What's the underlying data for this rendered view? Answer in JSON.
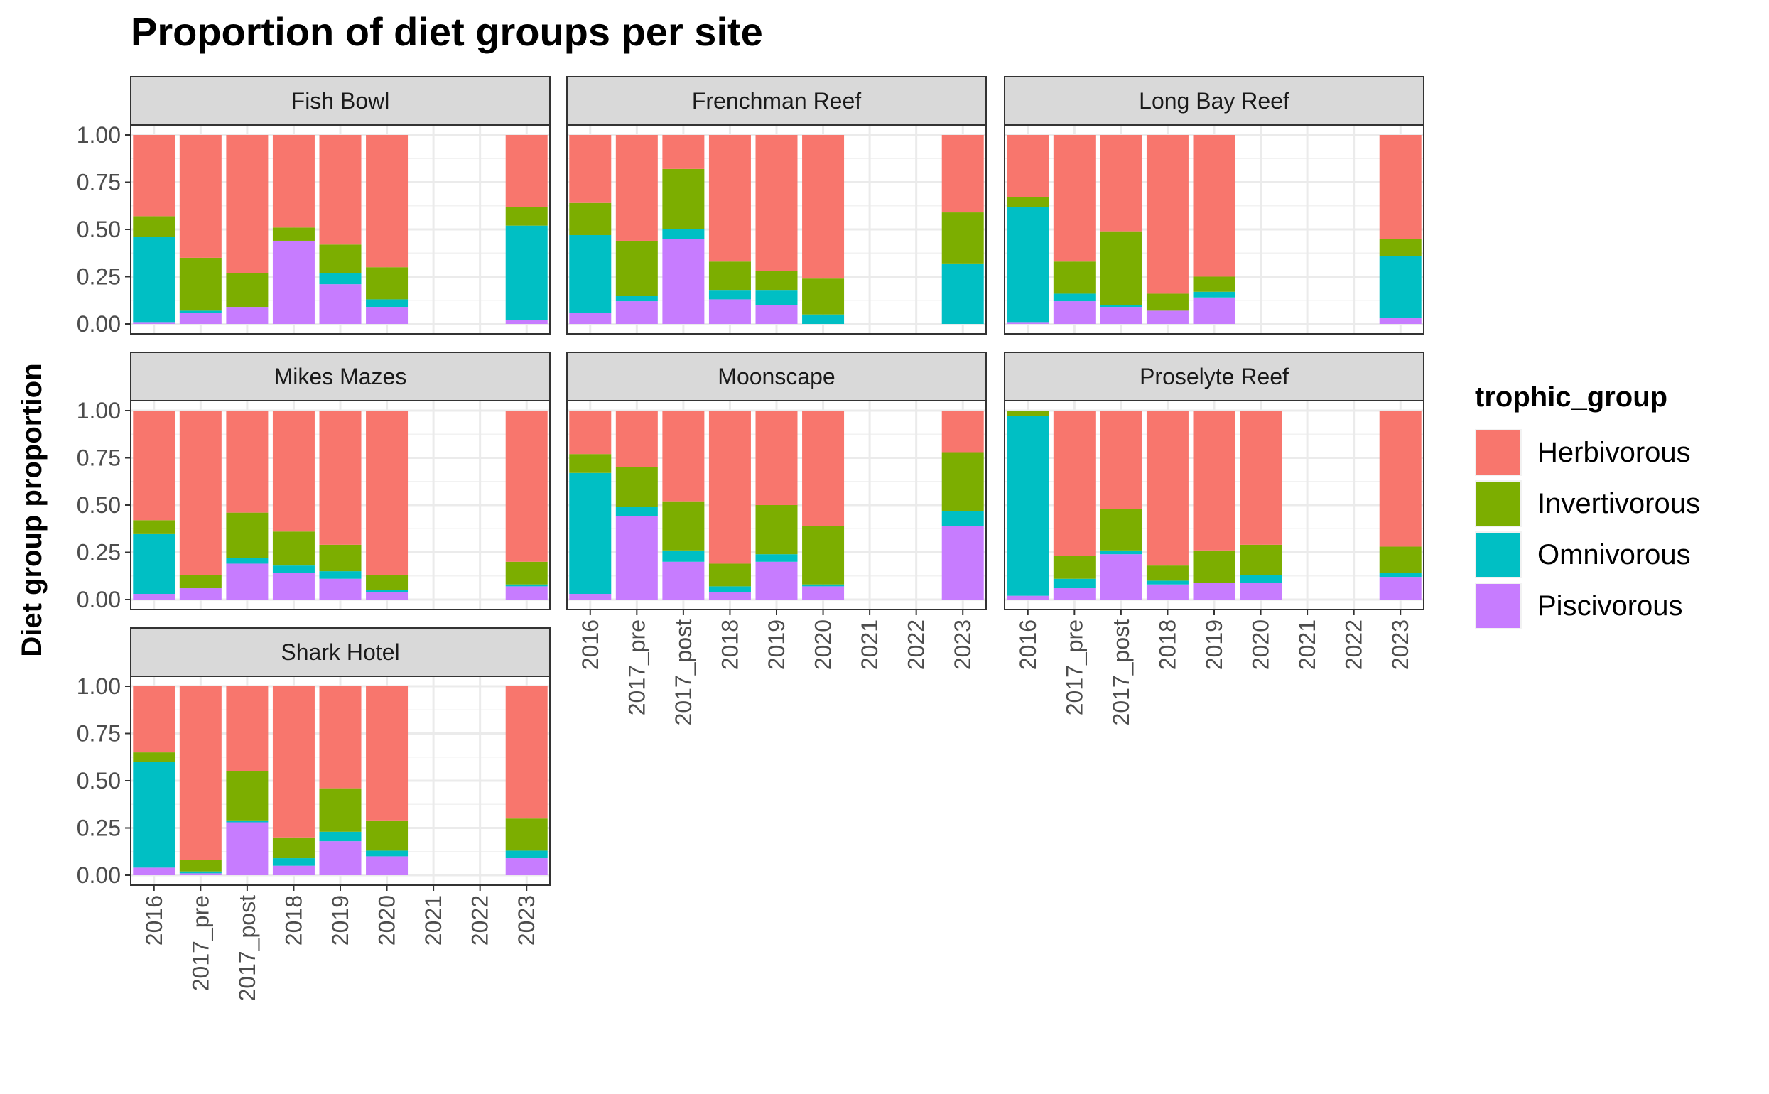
{
  "title": "Proportion of diet groups per site",
  "ylabel": "Diet group proportion",
  "xlabel": "",
  "legend": {
    "title": "trophic_group",
    "position": "right",
    "items": [
      {
        "label": "Herbivorous",
        "color": "#F8766D"
      },
      {
        "label": "Invertivorous",
        "color": "#7CAE00"
      },
      {
        "label": "Omnivorous",
        "color": "#00BFC4"
      },
      {
        "label": "Piscivorous",
        "color": "#C77CFF"
      }
    ]
  },
  "chart_data": {
    "type": "bar",
    "stacked": true,
    "facet_layout": "3 columns x 3 rows",
    "categories": [
      "2016",
      "2017_pre",
      "2017_post",
      "2018",
      "2019",
      "2020",
      "2021",
      "2022",
      "2023"
    ],
    "ylim": [
      0,
      1
    ],
    "yticks": [
      "0.00",
      "0.25",
      "0.50",
      "0.75",
      "1.00"
    ],
    "grid": true,
    "series_order_bottom_to_top": [
      "Piscivorous",
      "Omnivorous",
      "Invertivorous",
      "Herbivorous"
    ],
    "facets": [
      {
        "name": "Fish Bowl",
        "bars": [
          {
            "x": "2016",
            "Piscivorous": 0.01,
            "Omnivorous": 0.45,
            "Invertivorous": 0.11,
            "Herbivorous": 0.43
          },
          {
            "x": "2017_pre",
            "Piscivorous": 0.06,
            "Omnivorous": 0.01,
            "Invertivorous": 0.28,
            "Herbivorous": 0.65
          },
          {
            "x": "2017_post",
            "Piscivorous": 0.09,
            "Omnivorous": 0.0,
            "Invertivorous": 0.18,
            "Herbivorous": 0.73
          },
          {
            "x": "2018",
            "Piscivorous": 0.44,
            "Omnivorous": 0.0,
            "Invertivorous": 0.07,
            "Herbivorous": 0.49
          },
          {
            "x": "2019",
            "Piscivorous": 0.21,
            "Omnivorous": 0.06,
            "Invertivorous": 0.15,
            "Herbivorous": 0.58
          },
          {
            "x": "2020",
            "Piscivorous": 0.09,
            "Omnivorous": 0.04,
            "Invertivorous": 0.17,
            "Herbivorous": 0.7
          },
          {
            "x": "2023",
            "Piscivorous": 0.02,
            "Omnivorous": 0.5,
            "Invertivorous": 0.1,
            "Herbivorous": 0.38
          }
        ]
      },
      {
        "name": "Frenchman Reef",
        "bars": [
          {
            "x": "2016",
            "Piscivorous": 0.06,
            "Omnivorous": 0.41,
            "Invertivorous": 0.17,
            "Herbivorous": 0.36
          },
          {
            "x": "2017_pre",
            "Piscivorous": 0.12,
            "Omnivorous": 0.03,
            "Invertivorous": 0.29,
            "Herbivorous": 0.56
          },
          {
            "x": "2017_post",
            "Piscivorous": 0.45,
            "Omnivorous": 0.05,
            "Invertivorous": 0.32,
            "Herbivorous": 0.18
          },
          {
            "x": "2018",
            "Piscivorous": 0.13,
            "Omnivorous": 0.05,
            "Invertivorous": 0.15,
            "Herbivorous": 0.67
          },
          {
            "x": "2019",
            "Piscivorous": 0.1,
            "Omnivorous": 0.08,
            "Invertivorous": 0.1,
            "Herbivorous": 0.72
          },
          {
            "x": "2020",
            "Piscivorous": 0.0,
            "Omnivorous": 0.05,
            "Invertivorous": 0.19,
            "Herbivorous": 0.76
          },
          {
            "x": "2023",
            "Piscivorous": 0.0,
            "Omnivorous": 0.32,
            "Invertivorous": 0.27,
            "Herbivorous": 0.41
          }
        ]
      },
      {
        "name": "Long Bay Reef",
        "bars": [
          {
            "x": "2016",
            "Piscivorous": 0.01,
            "Omnivorous": 0.61,
            "Invertivorous": 0.05,
            "Herbivorous": 0.33
          },
          {
            "x": "2017_pre",
            "Piscivorous": 0.12,
            "Omnivorous": 0.04,
            "Invertivorous": 0.17,
            "Herbivorous": 0.67
          },
          {
            "x": "2017_post",
            "Piscivorous": 0.09,
            "Omnivorous": 0.01,
            "Invertivorous": 0.39,
            "Herbivorous": 0.51
          },
          {
            "x": "2018",
            "Piscivorous": 0.07,
            "Omnivorous": 0.0,
            "Invertivorous": 0.09,
            "Herbivorous": 0.84
          },
          {
            "x": "2019",
            "Piscivorous": 0.14,
            "Omnivorous": 0.03,
            "Invertivorous": 0.08,
            "Herbivorous": 0.75
          },
          {
            "x": "2023",
            "Piscivorous": 0.03,
            "Omnivorous": 0.33,
            "Invertivorous": 0.09,
            "Herbivorous": 0.55
          }
        ]
      },
      {
        "name": "Mikes Mazes",
        "bars": [
          {
            "x": "2016",
            "Piscivorous": 0.03,
            "Omnivorous": 0.32,
            "Invertivorous": 0.07,
            "Herbivorous": 0.58
          },
          {
            "x": "2017_pre",
            "Piscivorous": 0.06,
            "Omnivorous": 0.0,
            "Invertivorous": 0.07,
            "Herbivorous": 0.87
          },
          {
            "x": "2017_post",
            "Piscivorous": 0.19,
            "Omnivorous": 0.03,
            "Invertivorous": 0.24,
            "Herbivorous": 0.54
          },
          {
            "x": "2018",
            "Piscivorous": 0.14,
            "Omnivorous": 0.04,
            "Invertivorous": 0.18,
            "Herbivorous": 0.64
          },
          {
            "x": "2019",
            "Piscivorous": 0.11,
            "Omnivorous": 0.04,
            "Invertivorous": 0.14,
            "Herbivorous": 0.71
          },
          {
            "x": "2020",
            "Piscivorous": 0.04,
            "Omnivorous": 0.01,
            "Invertivorous": 0.08,
            "Herbivorous": 0.87
          },
          {
            "x": "2023",
            "Piscivorous": 0.07,
            "Omnivorous": 0.01,
            "Invertivorous": 0.12,
            "Herbivorous": 0.8
          }
        ]
      },
      {
        "name": "Moonscape",
        "bars": [
          {
            "x": "2016",
            "Piscivorous": 0.03,
            "Omnivorous": 0.64,
            "Invertivorous": 0.1,
            "Herbivorous": 0.23
          },
          {
            "x": "2017_pre",
            "Piscivorous": 0.44,
            "Omnivorous": 0.05,
            "Invertivorous": 0.21,
            "Herbivorous": 0.3
          },
          {
            "x": "2017_post",
            "Piscivorous": 0.2,
            "Omnivorous": 0.06,
            "Invertivorous": 0.26,
            "Herbivorous": 0.48
          },
          {
            "x": "2018",
            "Piscivorous": 0.04,
            "Omnivorous": 0.03,
            "Invertivorous": 0.12,
            "Herbivorous": 0.81
          },
          {
            "x": "2019",
            "Piscivorous": 0.2,
            "Omnivorous": 0.04,
            "Invertivorous": 0.26,
            "Herbivorous": 0.5
          },
          {
            "x": "2020",
            "Piscivorous": 0.07,
            "Omnivorous": 0.01,
            "Invertivorous": 0.31,
            "Herbivorous": 0.61
          },
          {
            "x": "2023",
            "Piscivorous": 0.39,
            "Omnivorous": 0.08,
            "Invertivorous": 0.31,
            "Herbivorous": 0.22
          }
        ]
      },
      {
        "name": "Proselyte Reef",
        "bars": [
          {
            "x": "2016",
            "Piscivorous": 0.02,
            "Omnivorous": 0.95,
            "Invertivorous": 0.03,
            "Herbivorous": 0.0
          },
          {
            "x": "2017_pre",
            "Piscivorous": 0.06,
            "Omnivorous": 0.05,
            "Invertivorous": 0.12,
            "Herbivorous": 0.77
          },
          {
            "x": "2017_post",
            "Piscivorous": 0.24,
            "Omnivorous": 0.02,
            "Invertivorous": 0.22,
            "Herbivorous": 0.52
          },
          {
            "x": "2018",
            "Piscivorous": 0.08,
            "Omnivorous": 0.02,
            "Invertivorous": 0.08,
            "Herbivorous": 0.82
          },
          {
            "x": "2019",
            "Piscivorous": 0.09,
            "Omnivorous": 0.0,
            "Invertivorous": 0.17,
            "Herbivorous": 0.74
          },
          {
            "x": "2020",
            "Piscivorous": 0.09,
            "Omnivorous": 0.04,
            "Invertivorous": 0.16,
            "Herbivorous": 0.71
          },
          {
            "x": "2023",
            "Piscivorous": 0.12,
            "Omnivorous": 0.02,
            "Invertivorous": 0.14,
            "Herbivorous": 0.72
          }
        ]
      },
      {
        "name": "Shark Hotel",
        "bars": [
          {
            "x": "2016",
            "Piscivorous": 0.04,
            "Omnivorous": 0.56,
            "Invertivorous": 0.05,
            "Herbivorous": 0.35
          },
          {
            "x": "2017_pre",
            "Piscivorous": 0.01,
            "Omnivorous": 0.01,
            "Invertivorous": 0.06,
            "Herbivorous": 0.92
          },
          {
            "x": "2017_post",
            "Piscivorous": 0.28,
            "Omnivorous": 0.01,
            "Invertivorous": 0.26,
            "Herbivorous": 0.45
          },
          {
            "x": "2018",
            "Piscivorous": 0.05,
            "Omnivorous": 0.04,
            "Invertivorous": 0.11,
            "Herbivorous": 0.8
          },
          {
            "x": "2019",
            "Piscivorous": 0.18,
            "Omnivorous": 0.05,
            "Invertivorous": 0.23,
            "Herbivorous": 0.54
          },
          {
            "x": "2020",
            "Piscivorous": 0.1,
            "Omnivorous": 0.03,
            "Invertivorous": 0.16,
            "Herbivorous": 0.71
          },
          {
            "x": "2023",
            "Piscivorous": 0.09,
            "Omnivorous": 0.04,
            "Invertivorous": 0.17,
            "Herbivorous": 0.7
          }
        ]
      }
    ]
  }
}
